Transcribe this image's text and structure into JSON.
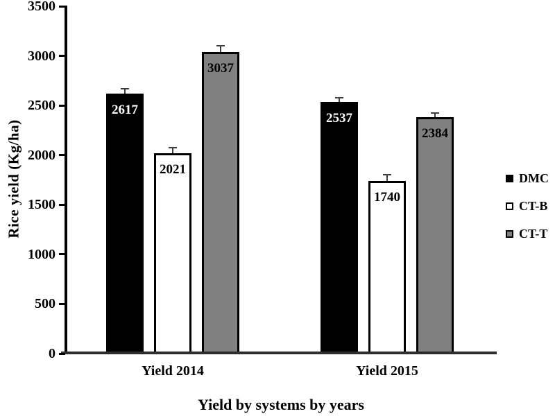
{
  "chart_data": {
    "type": "bar",
    "title": "",
    "xlabel": "Yield by systems by years",
    "ylabel": "Rice yield (Kg/ha)",
    "categories": [
      "Yield 2014",
      "Yield 2015"
    ],
    "series": [
      {
        "name": "DMC",
        "values": [
          2617,
          2537
        ],
        "errors": [
          45,
          35
        ],
        "fill": "#000000",
        "border": "#000000",
        "label_color": "#ffffff"
      },
      {
        "name": "CT-B",
        "values": [
          2021,
          1740
        ],
        "errors": [
          45,
          55
        ],
        "fill": "#ffffff",
        "border": "#000000",
        "label_color": "#000000"
      },
      {
        "name": "CT-T",
        "values": [
          3037,
          2384
        ],
        "errors": [
          55,
          35
        ],
        "fill": "#808080",
        "border": "#000000",
        "label_color": "#000000"
      }
    ],
    "ylim": [
      0,
      3500
    ],
    "yticks": [
      0,
      500,
      1000,
      1500,
      2000,
      2500,
      3000,
      3500
    ],
    "grid": false,
    "legend_position": "right",
    "error_bar_color": "#3d3d3d",
    "background": "#ffffff"
  }
}
